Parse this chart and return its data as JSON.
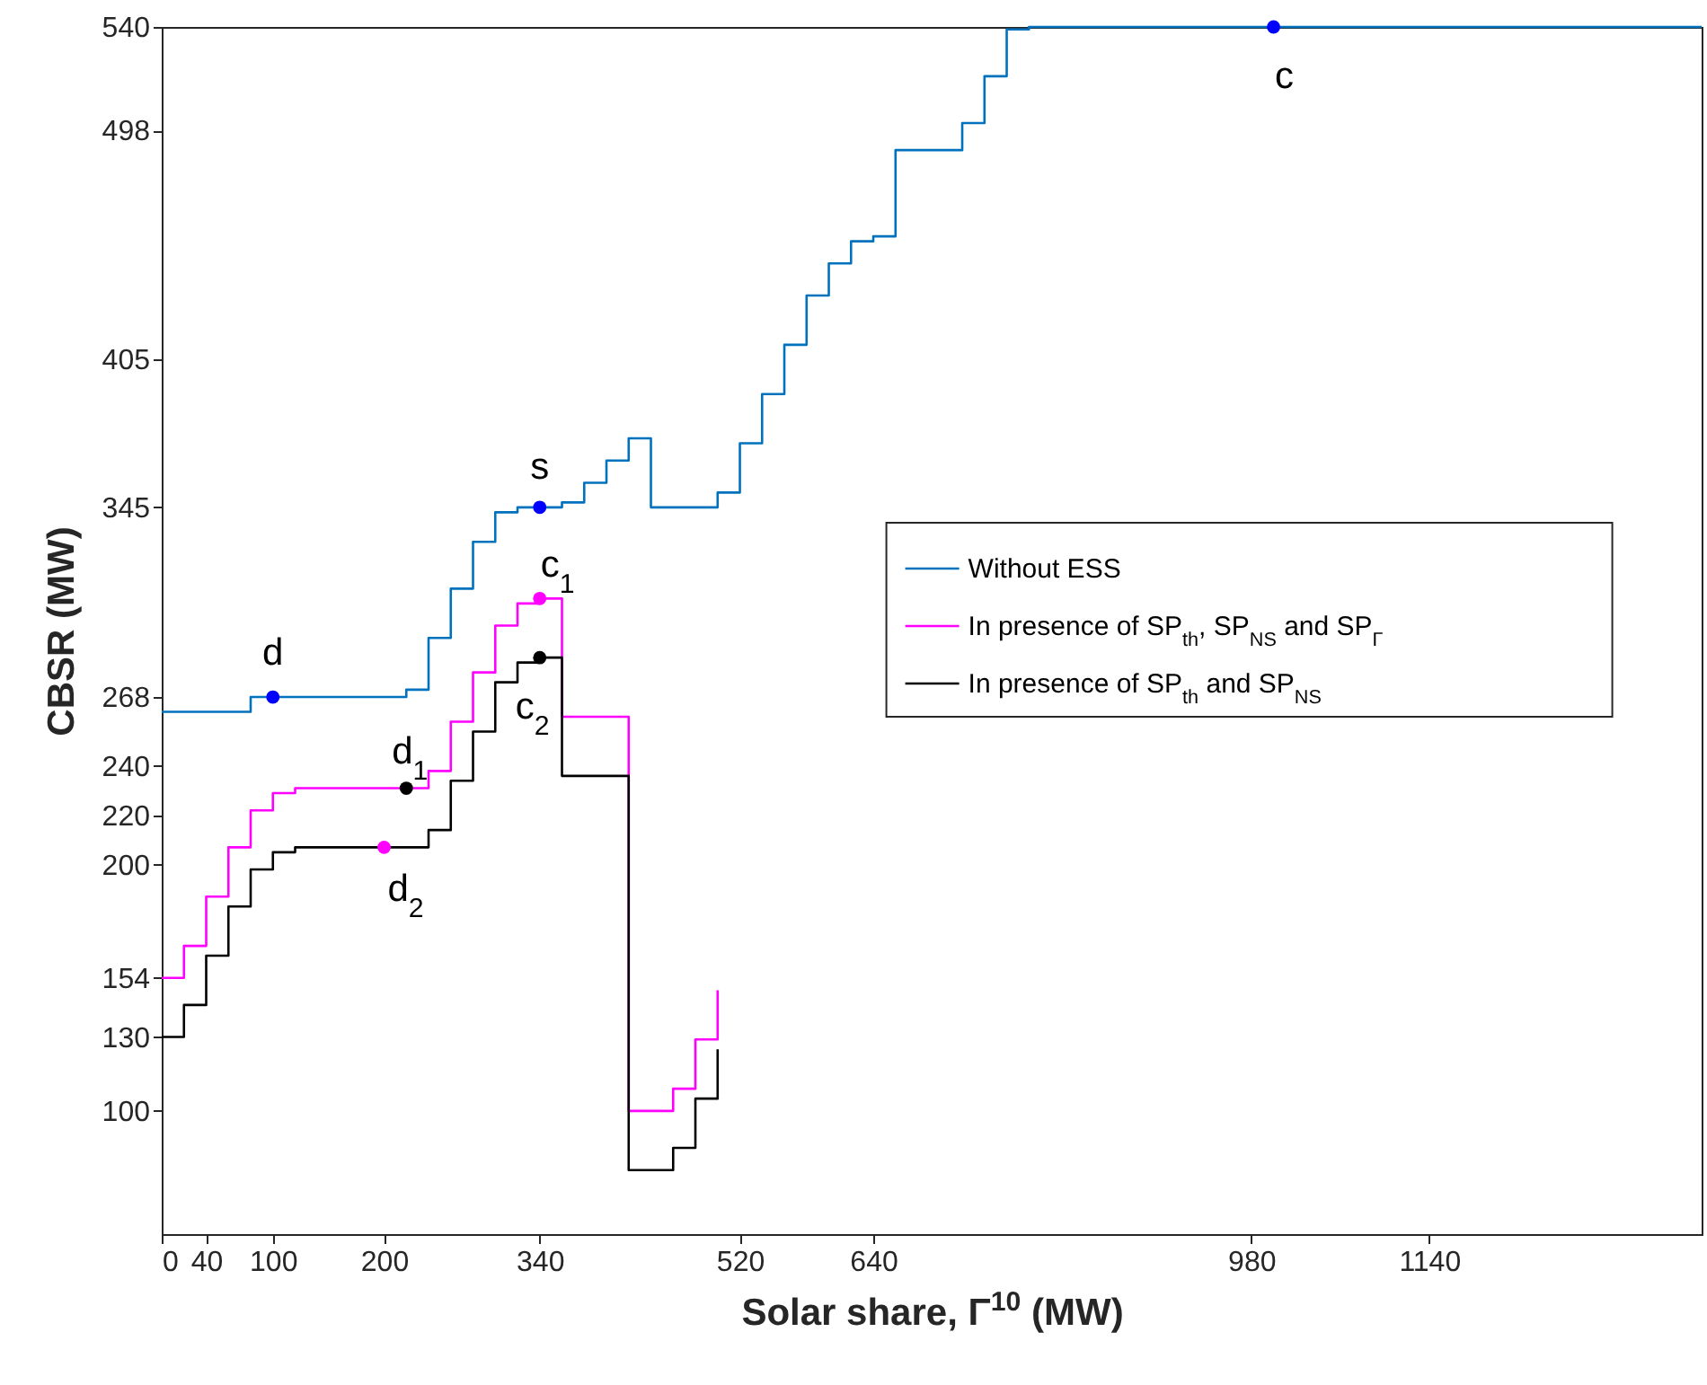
{
  "chart_data": {
    "type": "step",
    "xlabel": "Solar share, Γ$^{10}$ (MW)",
    "ylabel": "CBSR (MW)",
    "xlim": [
      0,
      1385
    ],
    "ylim": [
      50,
      540
    ],
    "xticks": [
      0,
      40,
      100,
      200,
      340,
      520,
      640,
      980,
      1140
    ],
    "yticks": [
      100,
      130,
      154,
      200,
      220,
      240,
      268,
      345,
      405,
      498,
      540
    ],
    "grid": false,
    "legend": "right",
    "line_style": "solid",
    "series": [
      {
        "name": "Without ESS",
        "color": "#0072bd",
        "x": [
          0,
          80,
          220,
          240,
          260,
          280,
          300,
          320,
          360,
          380,
          400,
          420,
          440,
          500,
          520,
          540,
          560,
          580,
          600,
          620,
          640,
          660,
          720,
          740,
          760,
          780,
          1385
        ],
        "values": [
          262,
          268,
          271,
          292,
          312,
          331,
          343,
          345,
          347,
          355,
          364,
          373,
          345,
          351,
          371,
          391,
          411,
          431,
          444,
          453,
          455,
          490,
          501,
          520,
          539,
          540,
          540
        ]
      },
      {
        "name": "In presence of SP$_{th}$, SP$_{NS}$ and SP$_{Γ}$",
        "color": "#ff00ff",
        "x": [
          0,
          20,
          40,
          60,
          80,
          100,
          120,
          240,
          260,
          280,
          300,
          320,
          340,
          360,
          420,
          460,
          480,
          500
        ],
        "values": [
          154,
          167,
          187,
          207,
          222,
          229,
          231,
          238,
          258,
          278,
          297,
          306,
          308,
          260,
          100,
          109,
          129,
          149
        ]
      },
      {
        "name": "In presence of SP$_{th}$ and SP$_{NS}$",
        "color": "#000000",
        "x": [
          0,
          20,
          40,
          60,
          80,
          100,
          120,
          240,
          260,
          280,
          300,
          320,
          340,
          360,
          420,
          460,
          480,
          500
        ],
        "values": [
          130,
          143,
          163,
          183,
          198,
          205,
          207,
          214,
          234,
          254,
          274,
          282,
          284,
          236,
          76,
          85,
          105,
          125
        ]
      },
      {
        "type": "scatter",
        "marker": "circle",
        "color": "#0000ff",
        "x": [
          100,
          340,
          1000
        ],
        "values": [
          268,
          345,
          540
        ]
      },
      {
        "type": "scatter",
        "marker": "circle",
        "color": "#ff00ff",
        "x": [
          200,
          340
        ],
        "values": [
          207,
          308
        ]
      },
      {
        "type": "scatter",
        "marker": "circle",
        "color": "#000000",
        "x": [
          220,
          340
        ],
        "values": [
          231,
          284
        ]
      }
    ],
    "annotations": [
      {
        "text": "d",
        "x": 100,
        "y": 268
      },
      {
        "text": "s",
        "x": 340,
        "y": 345
      },
      {
        "text": "c",
        "x": 1000,
        "y": 540
      },
      {
        "text": "c$_{1}$",
        "x": 340,
        "y": 308
      },
      {
        "text": "d$_{1}$",
        "x": 220,
        "y": 231
      },
      {
        "text": "d$_{2}$",
        "x": 200,
        "y": 207
      },
      {
        "text": "c$_{2}$",
        "x": 340,
        "y": 284
      }
    ]
  }
}
